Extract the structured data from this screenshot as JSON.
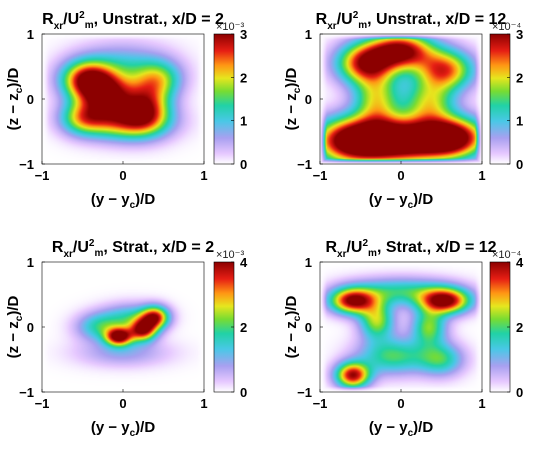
{
  "chart_data": [
    {
      "type": "heatmap",
      "title": "Rxr/U2m, Unstrat., x/D = 2",
      "title_parts": {
        "base": "R",
        "sub": "xr",
        "mid": "/U",
        "sup": "2",
        "msub": "m",
        "tail": ", Unstrat., x/D = 2"
      },
      "xlabel": "(y − yc)/D",
      "ylabel": "(z − zc)/D",
      "xticks": [
        "−1",
        "0",
        "1"
      ],
      "yticks": [
        "1",
        "0",
        "−1"
      ],
      "xlim": [
        -1,
        1
      ],
      "ylim": [
        -1,
        1
      ],
      "colorbar": {
        "ticks": [
          "0",
          "1",
          "2",
          "3"
        ],
        "range": [
          0,
          3
        ],
        "exponent_label": "×10⁻³"
      },
      "blobs": [
        {
          "x": -0.45,
          "y": 0.3,
          "sx": 0.22,
          "sy": 0.2,
          "v": 2.5
        },
        {
          "x": -0.2,
          "y": 0.05,
          "sx": 0.25,
          "sy": 0.22,
          "v": 2.6
        },
        {
          "x": 0.05,
          "y": -0.35,
          "sx": 0.35,
          "sy": 0.2,
          "v": 2.3
        },
        {
          "x": 0.3,
          "y": -0.1,
          "sx": 0.2,
          "sy": 0.25,
          "v": 2.0
        },
        {
          "x": -0.5,
          "y": -0.3,
          "sx": 0.2,
          "sy": 0.18,
          "v": 1.6
        },
        {
          "x": 0.0,
          "y": 0.5,
          "sx": 0.4,
          "sy": 0.25,
          "v": 1.0
        },
        {
          "x": 0.45,
          "y": 0.3,
          "sx": 0.2,
          "sy": 0.2,
          "v": 1.4
        }
      ]
    },
    {
      "type": "heatmap",
      "title": "Rxr/U2m, Unstrat., x/D = 12",
      "title_parts": {
        "base": "R",
        "sub": "xr",
        "mid": "/U",
        "sup": "2",
        "msub": "m",
        "tail": ", Unstrat., x/D = 12"
      },
      "xlabel": "(y − yc)/D",
      "ylabel": "(z − zc)/D",
      "xticks": [
        "−1",
        "0",
        "1"
      ],
      "yticks": [
        "1",
        "0",
        "−1"
      ],
      "xlim": [
        -1,
        1
      ],
      "ylim": [
        -1,
        1
      ],
      "colorbar": {
        "ticks": [
          "0",
          "1",
          "2",
          "3"
        ],
        "range": [
          0,
          3
        ],
        "exponent_label": "×10⁻⁴"
      },
      "blobs": [
        {
          "x": -0.6,
          "y": -0.65,
          "sx": 0.35,
          "sy": 0.25,
          "v": 3.3
        },
        {
          "x": 0.05,
          "y": -0.65,
          "sx": 0.4,
          "sy": 0.25,
          "v": 3.2
        },
        {
          "x": 0.65,
          "y": -0.6,
          "sx": 0.3,
          "sy": 0.22,
          "v": 3.0
        },
        {
          "x": 0.0,
          "y": 0.75,
          "sx": 0.28,
          "sy": 0.2,
          "v": 3.0
        },
        {
          "x": -0.45,
          "y": 0.55,
          "sx": 0.25,
          "sy": 0.22,
          "v": 2.6
        },
        {
          "x": 0.55,
          "y": 0.45,
          "sx": 0.25,
          "sy": 0.22,
          "v": 2.4
        },
        {
          "x": -0.3,
          "y": 0.0,
          "sx": 0.2,
          "sy": 0.3,
          "v": 1.8
        },
        {
          "x": 0.35,
          "y": -0.05,
          "sx": 0.22,
          "sy": 0.25,
          "v": 1.7
        }
      ]
    },
    {
      "type": "heatmap",
      "title": "Rxr/U2m, Strat., x/D = 2",
      "title_parts": {
        "base": "R",
        "sub": "xr",
        "mid": "/U",
        "sup": "2",
        "msub": "m",
        "tail": ", Strat., x/D = 2"
      },
      "xlabel": "(y − yc)/D",
      "ylabel": "(z − zc)/D",
      "xticks": [
        "−1",
        "0",
        "1"
      ],
      "yticks": [
        "1",
        "0",
        "−1"
      ],
      "xlim": [
        -1,
        1
      ],
      "ylim": [
        -1,
        1
      ],
      "colorbar": {
        "ticks": [
          "0",
          "2",
          "4"
        ],
        "range": [
          0,
          4
        ],
        "exponent_label": "×10⁻³"
      },
      "blobs": [
        {
          "x": -0.05,
          "y": -0.15,
          "sx": 0.12,
          "sy": 0.1,
          "v": 3.8
        },
        {
          "x": 0.25,
          "y": -0.05,
          "sx": 0.12,
          "sy": 0.12,
          "v": 3.5
        },
        {
          "x": 0.4,
          "y": 0.15,
          "sx": 0.12,
          "sy": 0.12,
          "v": 3.2
        },
        {
          "x": -0.3,
          "y": 0.0,
          "sx": 0.2,
          "sy": 0.15,
          "v": 1.6
        },
        {
          "x": 0.1,
          "y": 0.15,
          "sx": 0.25,
          "sy": 0.15,
          "v": 1.5
        },
        {
          "x": 0.0,
          "y": -0.4,
          "sx": 0.4,
          "sy": 0.15,
          "v": 0.9
        }
      ]
    },
    {
      "type": "heatmap",
      "title": "Rxr/U2m, Strat., x/D = 12",
      "title_parts": {
        "base": "R",
        "sub": "xr",
        "mid": "/U",
        "sup": "2",
        "msub": "m",
        "tail": ", Strat., x/D = 12"
      },
      "xlabel": "(y − yc)/D",
      "ylabel": "(z − zc)/D",
      "xticks": [
        "−1",
        "0",
        "1"
      ],
      "yticks": [
        "1",
        "0",
        "−1"
      ],
      "xlim": [
        -1,
        1
      ],
      "ylim": [
        -1,
        1
      ],
      "colorbar": {
        "ticks": [
          "0",
          "2",
          "4"
        ],
        "range": [
          0,
          4
        ],
        "exponent_label": "×10⁻⁴"
      },
      "blobs": [
        {
          "x": -0.6,
          "y": 0.4,
          "sx": 0.2,
          "sy": 0.14,
          "v": 3.8
        },
        {
          "x": 0.55,
          "y": 0.4,
          "sx": 0.22,
          "sy": 0.14,
          "v": 3.9
        },
        {
          "x": -0.6,
          "y": -0.75,
          "sx": 0.15,
          "sy": 0.14,
          "v": 3.8
        },
        {
          "x": -0.3,
          "y": 0.1,
          "sx": 0.15,
          "sy": 0.2,
          "v": 2.4
        },
        {
          "x": 0.35,
          "y": 0.0,
          "sx": 0.15,
          "sy": 0.2,
          "v": 2.2
        },
        {
          "x": -0.1,
          "y": -0.45,
          "sx": 0.3,
          "sy": 0.2,
          "v": 2.0
        },
        {
          "x": 0.5,
          "y": -0.5,
          "sx": 0.2,
          "sy": 0.18,
          "v": 1.8
        },
        {
          "x": 0.0,
          "y": 0.55,
          "sx": 0.45,
          "sy": 0.15,
          "v": 1.8
        }
      ]
    }
  ]
}
